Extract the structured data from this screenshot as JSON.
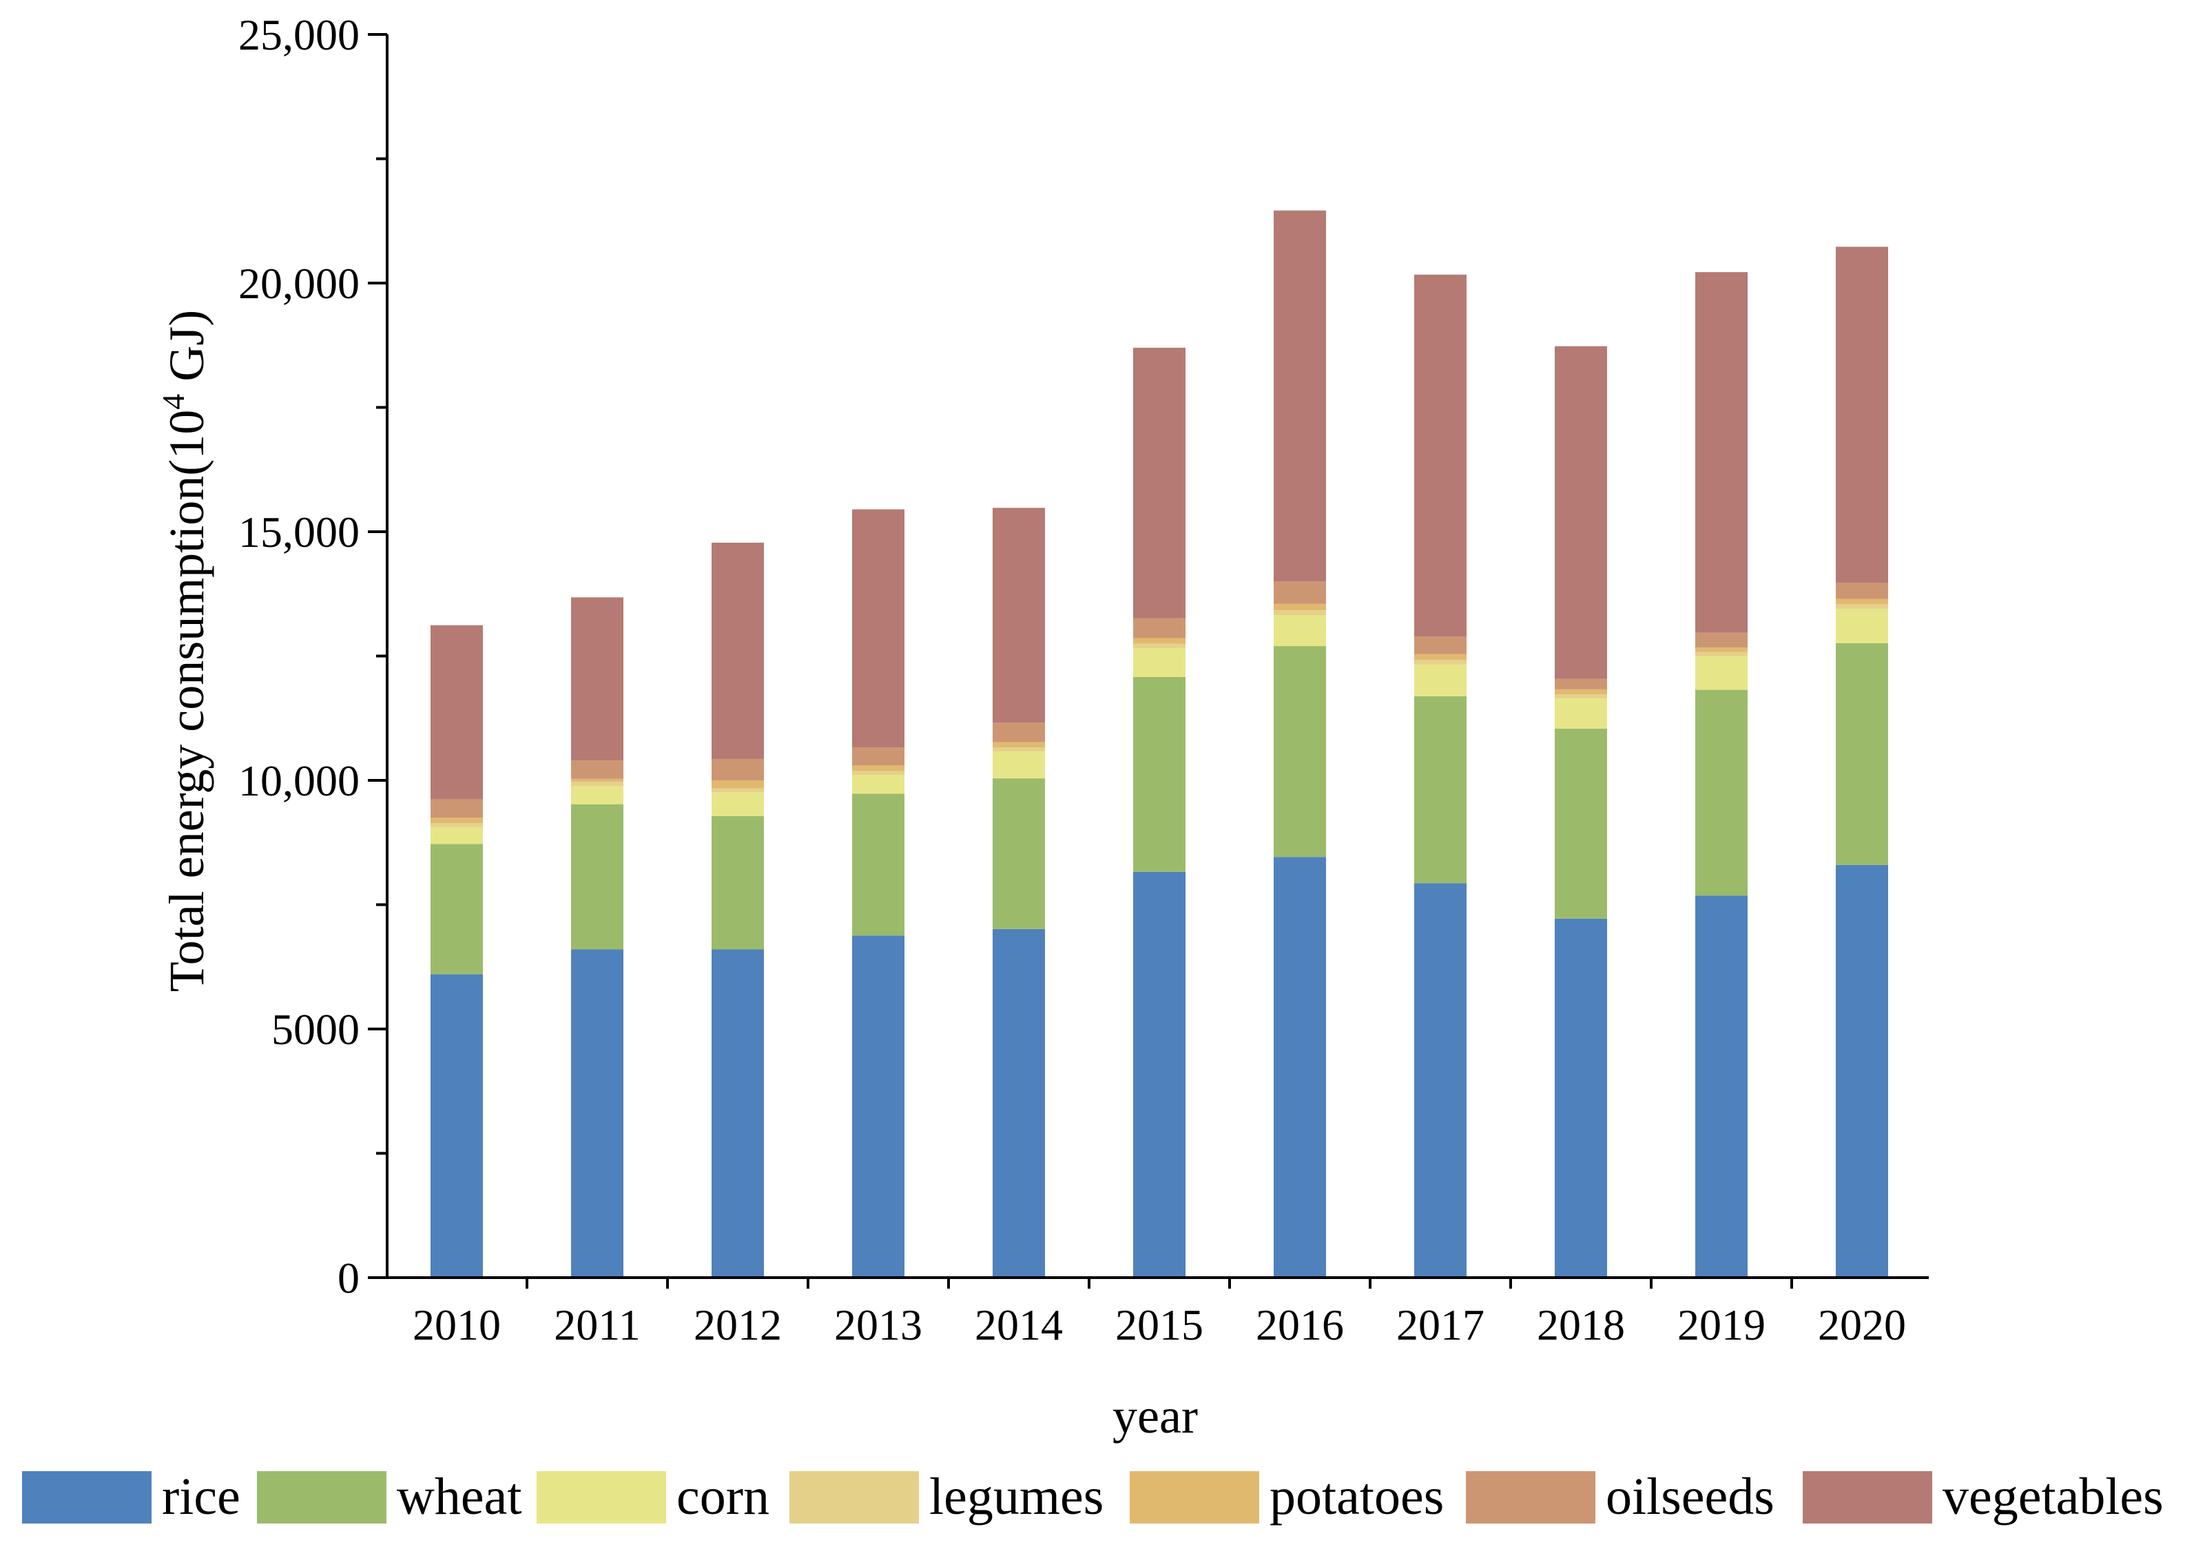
{
  "chart_data": {
    "type": "bar",
    "stacked": true,
    "title": "",
    "xlabel": "year",
    "ylabel": {
      "prefix": "Total energy consumption(10",
      "superscript": "4",
      "suffix": " GJ)"
    },
    "ylim": [
      0,
      25000
    ],
    "yticks": [
      0,
      5000,
      10000,
      15000,
      20000,
      25000
    ],
    "ytick_labels": [
      "0",
      "5000",
      "10,000",
      "15,000",
      "20,000",
      "25,000"
    ],
    "categories": [
      "2010",
      "2011",
      "2012",
      "2013",
      "2014",
      "2015",
      "2016",
      "2017",
      "2018",
      "2019",
      "2020"
    ],
    "legend_position": "bottom",
    "series": [
      {
        "name": "rice",
        "color": "#4f81bd",
        "values": [
          6100,
          6600,
          6600,
          6880,
          7010,
          8160,
          8460,
          7930,
          7220,
          7680,
          8300
        ]
      },
      {
        "name": "wheat",
        "color": "#9bbb6b",
        "values": [
          2620,
          2920,
          2680,
          2850,
          3030,
          3920,
          4240,
          3760,
          3820,
          4140,
          4460
        ]
      },
      {
        "name": "corn",
        "color": "#e6e688",
        "values": [
          340,
          370,
          480,
          380,
          540,
          580,
          620,
          640,
          610,
          680,
          690
        ]
      },
      {
        "name": "legumes",
        "color": "#e5d08a",
        "values": [
          80,
          80,
          80,
          80,
          80,
          90,
          100,
          90,
          80,
          80,
          90
        ]
      },
      {
        "name": "potatoes",
        "color": "#e1b96e",
        "values": [
          110,
          60,
          160,
          110,
          110,
          110,
          130,
          120,
          100,
          90,
          110
        ]
      },
      {
        "name": "oilseeds",
        "color": "#cd9673",
        "values": [
          370,
          370,
          430,
          360,
          390,
          400,
          450,
          350,
          210,
          300,
          320
        ]
      },
      {
        "name": "vegetables",
        "color": "#b57a73",
        "values": [
          3500,
          3280,
          4350,
          4790,
          4320,
          5440,
          7460,
          7280,
          6690,
          7250,
          6760
        ]
      }
    ]
  }
}
